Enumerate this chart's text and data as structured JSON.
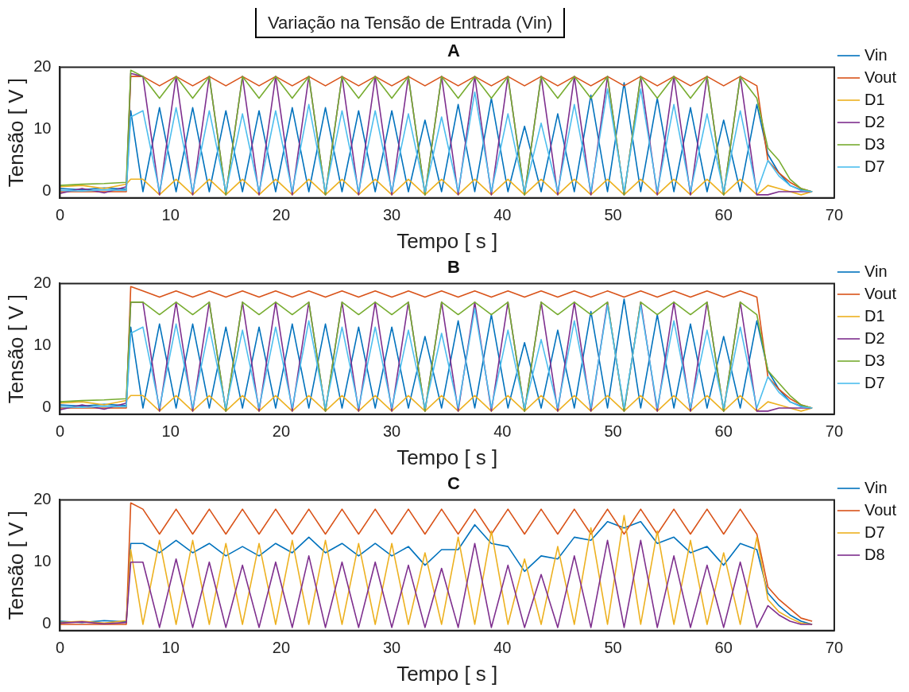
{
  "chart_data": [
    {
      "type": "line",
      "title": "A",
      "xlabel": "Tempo [ s ]",
      "ylabel": "Tensão [ V ]",
      "annotations": [
        "Variação na Tensão de Entrada (Vin)"
      ],
      "xlim": [
        0,
        70
      ],
      "xticks": [
        0,
        10,
        20,
        30,
        40,
        50,
        60,
        70
      ],
      "ylim": [
        -1,
        20
      ],
      "yticks": [
        0,
        10,
        20
      ],
      "grid": false,
      "legend": "top right",
      "marker": "none",
      "line_style": "solid",
      "x": [
        0,
        2,
        4,
        6,
        6.4,
        7.5,
        9,
        10.5,
        12,
        13.5,
        15,
        16.5,
        18,
        19.5,
        21,
        22.5,
        24,
        25.5,
        27,
        28.5,
        30,
        31.5,
        33,
        34.5,
        36,
        37.5,
        39,
        40.5,
        42,
        43.5,
        45,
        46.5,
        48,
        49.5,
        51,
        52.5,
        54,
        55.5,
        57,
        58.5,
        60,
        61.5,
        63,
        64,
        65,
        66,
        67,
        68
      ],
      "series": [
        {
          "name": "Vin",
          "color": "#0072bd",
          "values": [
            0.5,
            0.3,
            0.6,
            0.4,
            13,
            0,
            13.5,
            0,
            13.5,
            0,
            13,
            0,
            13,
            0,
            13.5,
            0,
            13.5,
            0,
            13,
            0,
            13,
            0,
            11.5,
            0,
            14,
            0,
            15,
            0,
            10.5,
            0,
            12.5,
            0,
            15.5,
            0,
            17.5,
            0,
            15,
            0,
            13.5,
            0,
            11.5,
            0,
            14,
            6,
            3,
            1,
            0.3,
            0
          ]
        },
        {
          "name": "Vout",
          "color": "#d95319",
          "values": [
            0,
            0,
            0,
            0,
            18.5,
            18.5,
            17,
            18.5,
            17,
            18.5,
            17,
            18.5,
            17,
            18.5,
            17,
            18.5,
            17,
            18.5,
            17,
            18.5,
            17,
            18.5,
            17,
            18.5,
            17,
            18.5,
            17,
            18.5,
            17,
            18.5,
            17,
            18.5,
            17,
            18.5,
            17,
            18.5,
            17,
            18.5,
            17,
            18.5,
            17,
            18.5,
            17,
            5,
            3,
            1.5,
            0.5,
            0
          ]
        },
        {
          "name": "D1",
          "color": "#edb120",
          "values": [
            0.8,
            1,
            0.5,
            1.2,
            2,
            2,
            -0.5,
            2,
            -0.5,
            2,
            -0.5,
            2,
            -0.5,
            2,
            -0.5,
            2,
            -0.5,
            2,
            -0.5,
            2,
            -0.5,
            2,
            -0.5,
            2,
            -0.5,
            2,
            -0.5,
            2,
            -0.5,
            2,
            -0.5,
            2,
            -0.5,
            2,
            -0.5,
            2,
            -0.5,
            2,
            -0.5,
            2,
            -0.5,
            2,
            -0.5,
            1,
            0.5,
            0,
            -0.5,
            0
          ]
        },
        {
          "name": "D2",
          "color": "#7e2f8e",
          "values": [
            -0.3,
            0.5,
            -0.2,
            0.8,
            19,
            18.5,
            -0.5,
            18.5,
            -0.5,
            18.5,
            -0.5,
            18.5,
            -0.5,
            18.5,
            -0.5,
            18.5,
            -0.5,
            18.5,
            -0.5,
            18.5,
            -0.5,
            18.5,
            -0.5,
            18.5,
            -0.5,
            18.5,
            -0.5,
            18.5,
            -0.5,
            18.5,
            -0.5,
            18.5,
            -0.5,
            18.5,
            -0.5,
            18.5,
            -0.5,
            18.5,
            -0.5,
            18.5,
            -0.5,
            18.5,
            -0.5,
            -0.5,
            0,
            0,
            0,
            0
          ]
        },
        {
          "name": "D3",
          "color": "#77ac30",
          "values": [
            1,
            1.2,
            1.3,
            1.5,
            19.5,
            18.5,
            15,
            18.5,
            15,
            18.5,
            -0.5,
            18.5,
            15,
            18.5,
            15,
            18.5,
            -0.5,
            18.5,
            15,
            18.5,
            15,
            18.5,
            -0.5,
            18.5,
            15,
            18.5,
            15,
            18.5,
            -0.5,
            18.5,
            15,
            18.5,
            15,
            18.5,
            -0.5,
            18.5,
            15,
            18.5,
            15,
            18.5,
            -0.5,
            18.5,
            15,
            7,
            5,
            2,
            0.5,
            0
          ]
        },
        {
          "name": "D7",
          "color": "#4dbeee",
          "values": [
            0.2,
            0.1,
            0.3,
            0.2,
            12,
            13,
            0,
            13.5,
            0,
            13,
            0,
            12.5,
            0,
            13,
            0,
            14,
            0,
            13,
            0,
            13,
            0,
            12.5,
            0,
            12,
            0,
            16,
            0,
            12.5,
            0,
            11,
            0,
            14,
            0,
            16.5,
            0,
            16.5,
            0,
            14,
            0,
            12.5,
            0,
            13,
            0,
            5,
            2.5,
            1,
            0.2,
            0
          ]
        }
      ]
    },
    {
      "type": "line",
      "title": "B",
      "xlabel": "Tempo [ s ]",
      "ylabel": "Tensão [ V ]",
      "xlim": [
        0,
        70
      ],
      "xticks": [
        0,
        10,
        20,
        30,
        40,
        50,
        60,
        70
      ],
      "ylim": [
        -1,
        20
      ],
      "yticks": [
        0,
        10,
        20
      ],
      "grid": false,
      "legend": "top right",
      "marker": "none",
      "line_style": "solid",
      "x": [
        0,
        2,
        4,
        6,
        6.4,
        7.5,
        9,
        10.5,
        12,
        13.5,
        15,
        16.5,
        18,
        19.5,
        21,
        22.5,
        24,
        25.5,
        27,
        28.5,
        30,
        31.5,
        33,
        34.5,
        36,
        37.5,
        39,
        40.5,
        42,
        43.5,
        45,
        46.5,
        48,
        49.5,
        51,
        52.5,
        54,
        55.5,
        57,
        58.5,
        60,
        61.5,
        63,
        64,
        65,
        66,
        67,
        68
      ],
      "series": [
        {
          "name": "Vin",
          "color": "#0072bd",
          "values": [
            0.5,
            0.3,
            0.6,
            0.4,
            13,
            0,
            13.5,
            0,
            13.5,
            0,
            13,
            0,
            13,
            0,
            13.5,
            0,
            13.5,
            0,
            13,
            0,
            13,
            0,
            11.5,
            0,
            14,
            0,
            15,
            0,
            10.5,
            0,
            12.5,
            0,
            15.5,
            0,
            17.5,
            0,
            15,
            0,
            13.5,
            0,
            11.5,
            0,
            14,
            6,
            3,
            1,
            0.3,
            0
          ]
        },
        {
          "name": "Vout",
          "color": "#d95319",
          "values": [
            0,
            0,
            0,
            0,
            19.5,
            18.8,
            17.8,
            18.8,
            17.8,
            18.8,
            17.8,
            18.8,
            17.8,
            18.8,
            17.8,
            18.8,
            17.8,
            18.8,
            17.8,
            18.8,
            17.8,
            18.8,
            17.8,
            18.8,
            17.8,
            18.8,
            17.8,
            18.8,
            17.8,
            18.8,
            17.8,
            18.8,
            17.8,
            18.8,
            17.8,
            18.8,
            17.8,
            18.8,
            17.8,
            18.8,
            17.8,
            18.8,
            17.8,
            5,
            3,
            1.5,
            0.5,
            0
          ]
        },
        {
          "name": "D1",
          "color": "#edb120",
          "values": [
            0.8,
            1,
            0.5,
            1.2,
            2,
            2,
            -0.5,
            2,
            -0.5,
            2,
            -0.5,
            2,
            -0.5,
            2,
            -0.5,
            2,
            -0.5,
            2,
            -0.5,
            2,
            -0.5,
            2,
            -0.5,
            2,
            -0.5,
            2,
            -0.5,
            2,
            -0.5,
            2,
            -0.5,
            2,
            -0.5,
            2,
            -0.5,
            2,
            -0.5,
            2,
            -0.5,
            2,
            -0.5,
            2,
            -0.5,
            1,
            0.5,
            0,
            -0.5,
            0
          ]
        },
        {
          "name": "D2",
          "color": "#7e2f8e",
          "values": [
            -0.3,
            0.5,
            -0.2,
            0.8,
            17,
            17,
            -0.5,
            17,
            -0.5,
            17,
            -0.5,
            17,
            -0.5,
            17,
            -0.5,
            17,
            -0.5,
            17,
            -0.5,
            17,
            -0.5,
            17,
            -0.5,
            17,
            -0.5,
            17,
            -0.5,
            17,
            -0.5,
            17,
            -0.5,
            17,
            -0.5,
            17,
            -0.5,
            17,
            -0.5,
            17,
            -0.5,
            17,
            -0.5,
            17,
            -0.5,
            -0.5,
            0,
            0,
            0,
            0
          ]
        },
        {
          "name": "D3",
          "color": "#77ac30",
          "values": [
            1,
            1.2,
            1.3,
            1.5,
            17,
            17,
            15,
            17,
            15,
            17,
            -0.5,
            17,
            15,
            17,
            15,
            17,
            -0.5,
            17,
            15,
            17,
            15,
            17,
            -0.5,
            17,
            15,
            17,
            15,
            17,
            -0.5,
            17,
            15,
            17,
            15,
            17,
            -0.5,
            17,
            15,
            17,
            15,
            17,
            -0.5,
            17,
            15,
            6,
            4,
            2,
            0.5,
            0
          ]
        },
        {
          "name": "D7",
          "color": "#4dbeee",
          "values": [
            0.2,
            0.1,
            0.3,
            0.2,
            12,
            13,
            0,
            13.5,
            0,
            13,
            0,
            12.5,
            0,
            13,
            0,
            14,
            0,
            13,
            0,
            13,
            0,
            12.5,
            0,
            12,
            0,
            16,
            0,
            12.5,
            0,
            11,
            0,
            14,
            0,
            16.5,
            0,
            16.5,
            0,
            14,
            0,
            12.5,
            0,
            13,
            0,
            5,
            2.5,
            1,
            0.2,
            0
          ]
        }
      ]
    },
    {
      "type": "line",
      "title": "C",
      "xlabel": "Tempo [ s ]",
      "ylabel": "Tensão [ V ]",
      "xlim": [
        0,
        70
      ],
      "xticks": [
        0,
        10,
        20,
        30,
        40,
        50,
        60,
        70
      ],
      "ylim": [
        -1,
        20
      ],
      "yticks": [
        0,
        10,
        20
      ],
      "grid": false,
      "legend": "top right",
      "marker": "none",
      "line_style": "solid",
      "x": [
        0,
        2,
        4,
        6,
        6.4,
        7.5,
        9,
        10.5,
        12,
        13.5,
        15,
        16.5,
        18,
        19.5,
        21,
        22.5,
        24,
        25.5,
        27,
        28.5,
        30,
        31.5,
        33,
        34.5,
        36,
        37.5,
        39,
        40.5,
        42,
        43.5,
        45,
        46.5,
        48,
        49.5,
        51,
        52.5,
        54,
        55.5,
        57,
        58.5,
        60,
        61.5,
        63,
        64,
        65,
        66,
        67,
        68
      ],
      "series": [
        {
          "name": "Vin",
          "color": "#0072bd",
          "values": [
            0.5,
            0.3,
            0.6,
            0.4,
            13,
            13,
            11.5,
            13.5,
            11.5,
            13,
            11,
            12.5,
            11,
            13,
            11.5,
            14,
            11.5,
            13,
            11,
            13,
            11,
            12.5,
            9.5,
            12,
            12,
            16,
            13,
            12.5,
            8.5,
            11,
            10.5,
            14,
            13.5,
            16.5,
            15.5,
            16.5,
            13,
            14,
            11.5,
            12.5,
            9.5,
            13,
            12,
            5,
            3,
            1.5,
            0.5,
            0
          ]
        },
        {
          "name": "Vout",
          "color": "#d95319",
          "values": [
            0,
            0,
            0,
            0,
            19.5,
            18.5,
            14.5,
            18.5,
            14.5,
            18.5,
            14.5,
            18.5,
            14.5,
            18.5,
            14.5,
            18.5,
            14.5,
            18.5,
            14.5,
            18.5,
            14.5,
            18.5,
            14.5,
            18.5,
            14.5,
            18.5,
            14.5,
            18.5,
            14.5,
            18.5,
            14.5,
            18.5,
            14.5,
            18.5,
            14.5,
            18.5,
            14.5,
            18.5,
            14.5,
            18.5,
            14.5,
            18.5,
            14.5,
            6,
            4,
            2.5,
            1,
            0.5
          ]
        },
        {
          "name": "D7",
          "color": "#edb120",
          "values": [
            0.3,
            0.5,
            0.2,
            0.6,
            12,
            0,
            13.5,
            0,
            13.5,
            0,
            13,
            0,
            13,
            0,
            13.5,
            0,
            13.5,
            0,
            13,
            0,
            13,
            0,
            11.5,
            0,
            14,
            0,
            15,
            0,
            10.5,
            0,
            12.5,
            0,
            15.5,
            0,
            17.5,
            0,
            15,
            0,
            13.5,
            0,
            11.5,
            0,
            14,
            4,
            2,
            1,
            0.2,
            0
          ]
        },
        {
          "name": "D8",
          "color": "#7e2f8e",
          "values": [
            0.2,
            0.4,
            0.1,
            0.3,
            10,
            10,
            -0.5,
            10.5,
            -0.5,
            10,
            -0.5,
            9.5,
            -0.5,
            10,
            -0.5,
            11,
            -0.5,
            10,
            -0.5,
            10,
            -0.5,
            9.5,
            -0.5,
            9,
            -0.5,
            13,
            -0.5,
            9.5,
            -0.5,
            8,
            -0.5,
            11,
            -0.5,
            13.5,
            -0.5,
            13.5,
            -0.5,
            11,
            -0.5,
            9.5,
            -0.5,
            10,
            -0.5,
            3,
            1.5,
            0.5,
            0,
            0
          ]
        }
      ]
    }
  ]
}
